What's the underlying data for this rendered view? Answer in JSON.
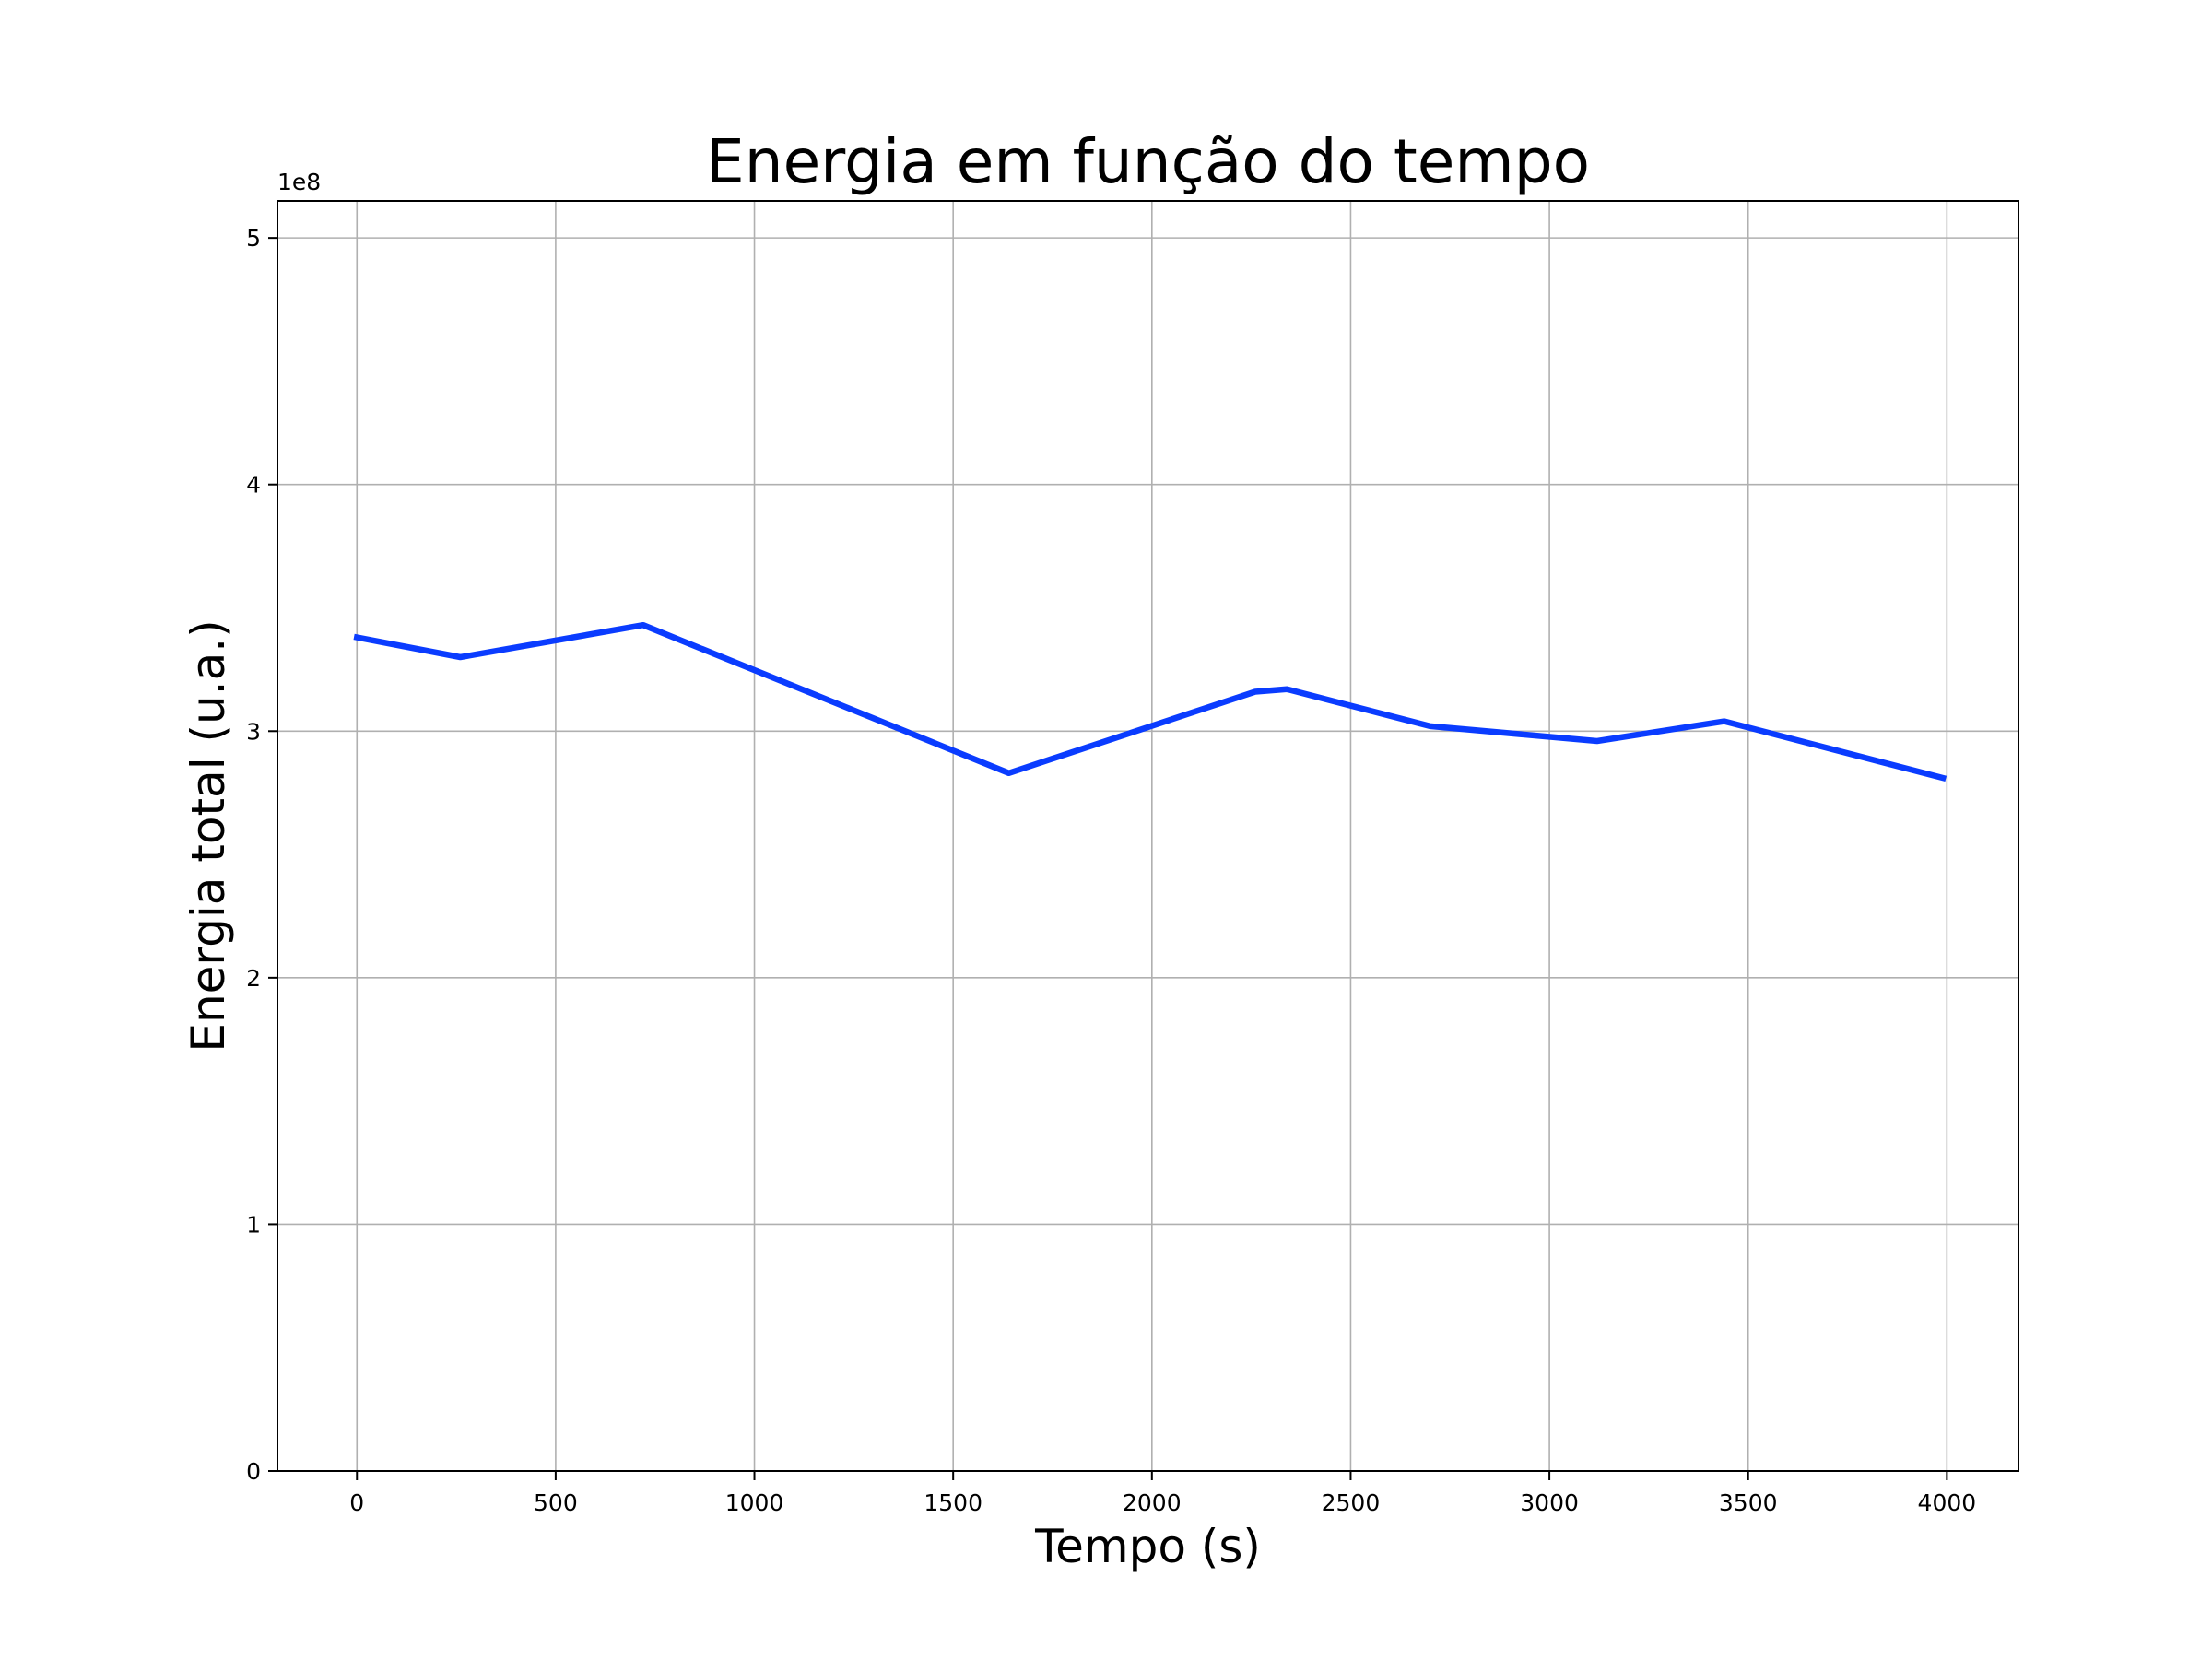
{
  "chart_data": {
    "type": "line",
    "title": "Energia em função do tempo",
    "xlabel": "Tempo (s)",
    "ylabel": "Energia total (u.a.)",
    "y_offset_label": "1e8",
    "xlim": [
      -200,
      4180
    ],
    "ylim": [
      0,
      5.15
    ],
    "x_ticks": [
      0,
      500,
      1000,
      1500,
      2000,
      2500,
      3000,
      3500,
      4000
    ],
    "x_tick_labels": [
      "0",
      "500",
      "1000",
      "1500",
      "2000",
      "2500",
      "3000",
      "3500",
      "4000"
    ],
    "y_ticks": [
      0,
      1,
      2,
      3,
      4,
      5
    ],
    "y_tick_labels": [
      "0",
      "1",
      "2",
      "3",
      "4",
      "5"
    ],
    "grid": true,
    "legend": "none",
    "series": [
      {
        "color": "#0a3cff",
        "x": [
          0,
          260,
          720,
          1640,
          2260,
          2340,
          2700,
          3120,
          3440,
          3990
        ],
        "y": [
          3.38,
          3.3,
          3.43,
          2.83,
          3.16,
          3.17,
          3.02,
          2.96,
          3.04,
          2.81
        ]
      }
    ]
  }
}
